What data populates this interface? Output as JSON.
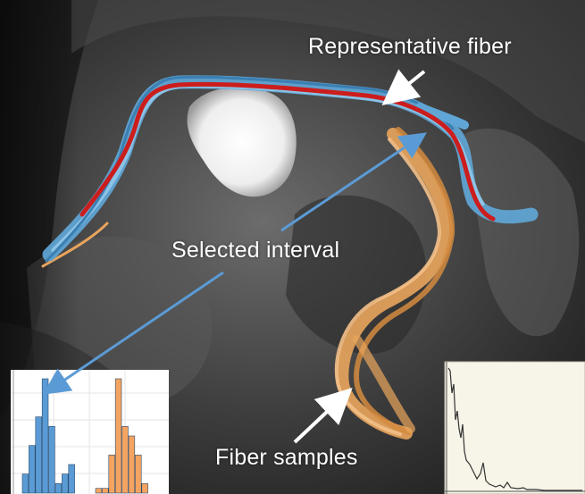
{
  "labels": {
    "representative_fiber": "Representative fiber",
    "selected_interval": "Selected interval",
    "fiber_samples": "Fiber samples"
  },
  "histogram": {
    "blue_values": [
      2,
      5,
      8,
      12,
      7,
      1,
      2,
      3
    ],
    "orange_values": [
      0.5,
      0.5,
      4,
      12,
      7,
      6,
      4,
      1
    ],
    "colors": {
      "blue": "#5b9bd5",
      "orange": "#f4a460"
    }
  },
  "profile_plot": {
    "background": "#f7f4e8"
  },
  "colors": {
    "representative_fiber": "#cc1d1d",
    "blue_fibers": "#5fa6d6",
    "orange_fibers": "#e9a55c",
    "arrow_blue": "#5b9bd5",
    "arrow_white": "#ffffff"
  }
}
